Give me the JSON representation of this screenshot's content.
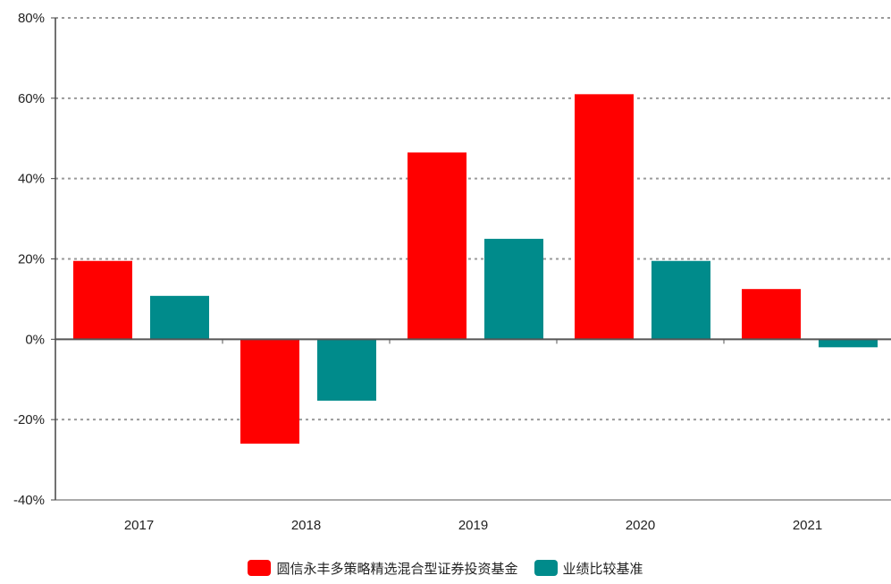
{
  "chart_data": {
    "type": "bar",
    "categories": [
      "2017",
      "2018",
      "2019",
      "2020",
      "2021"
    ],
    "series": [
      {
        "name": "圆信永丰多策略精选混合型证券投资基金",
        "values": [
          19.5,
          -26.0,
          46.5,
          61.0,
          12.5
        ],
        "color": "#ff0000"
      },
      {
        "name": "业绩比较基准",
        "values": [
          10.8,
          -15.3,
          25.0,
          19.5,
          -2.0
        ],
        "color": "#008b8b"
      }
    ],
    "ylim": [
      -40,
      80
    ],
    "yticks": [
      "80%",
      "60%",
      "40%",
      "20%",
      "0%",
      "-20%",
      "-40%"
    ],
    "ytick_values": [
      80,
      60,
      40,
      20,
      0,
      -20,
      -40
    ],
    "grid": true,
    "legend_position": "bottom-center",
    "title": "",
    "xlabel": "",
    "ylabel": ""
  }
}
